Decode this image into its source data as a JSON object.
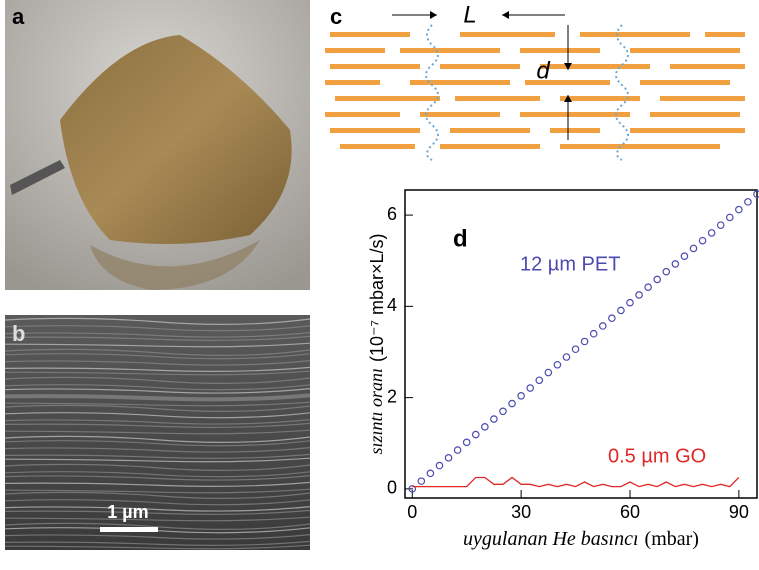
{
  "panels": {
    "a": "a",
    "b": "b",
    "c": "c",
    "scale_bar": "1 µm",
    "c_L": "L",
    "c_d": "d"
  },
  "chart_data": {
    "type": "line",
    "panel_label": "d",
    "xlabel": "uygulanan He basıncı",
    "xlabel_units": "(mbar)",
    "ylabel": "sızıntı oranı",
    "ylabel_units": "(10⁻⁷ mbar×L/s)",
    "xlim": [
      -2,
      95
    ],
    "ylim": [
      -0.2,
      6.55
    ],
    "xticks": [
      0,
      30,
      60,
      90
    ],
    "yticks": [
      0,
      2,
      4,
      6
    ],
    "series": [
      {
        "name": "12 µm PET",
        "color": "#4b4bb0",
        "marker": "circle",
        "x": [
          0,
          2.5,
          5,
          7.5,
          10,
          12.5,
          15,
          17.5,
          20,
          22.5,
          25,
          27.5,
          30,
          32.5,
          35,
          37.5,
          40,
          42.5,
          45,
          47.5,
          50,
          52.5,
          55,
          57.5,
          60,
          62.5,
          65,
          67.5,
          70,
          72.5,
          75,
          77.5,
          80,
          82.5,
          85,
          87.5,
          90,
          92.5,
          95
        ],
        "values": [
          0,
          0.17,
          0.34,
          0.51,
          0.68,
          0.85,
          1.02,
          1.19,
          1.36,
          1.53,
          1.7,
          1.87,
          2.04,
          2.21,
          2.38,
          2.55,
          2.72,
          2.89,
          3.06,
          3.23,
          3.4,
          3.57,
          3.74,
          3.91,
          4.08,
          4.25,
          4.42,
          4.59,
          4.76,
          4.93,
          5.1,
          5.27,
          5.44,
          5.61,
          5.78,
          5.95,
          6.12,
          6.29,
          6.46
        ]
      },
      {
        "name": "0.5 µm GO",
        "color": "#e02828",
        "marker": "none",
        "x": [
          0,
          2.5,
          5,
          7.5,
          10,
          12.5,
          15,
          17.5,
          20,
          22.5,
          25,
          27.5,
          30,
          32.5,
          35,
          37.5,
          40,
          42.5,
          45,
          47.5,
          50,
          52.5,
          55,
          57.5,
          60,
          62.5,
          65,
          67.5,
          70,
          72.5,
          75,
          77.5,
          80,
          82.5,
          85,
          87.5,
          90
        ],
        "values": [
          0.05,
          0.05,
          0.05,
          0.05,
          0.05,
          0.05,
          0.05,
          0.25,
          0.25,
          0.1,
          0.1,
          0.25,
          0.1,
          0.1,
          0.05,
          0.1,
          0.05,
          0.1,
          0.05,
          0.15,
          0.05,
          0.1,
          0.05,
          0.05,
          0.15,
          0.05,
          0.1,
          0.05,
          0.15,
          0.05,
          0.1,
          0.05,
          0.1,
          0.05,
          0.1,
          0.05,
          0.25
        ]
      }
    ]
  }
}
